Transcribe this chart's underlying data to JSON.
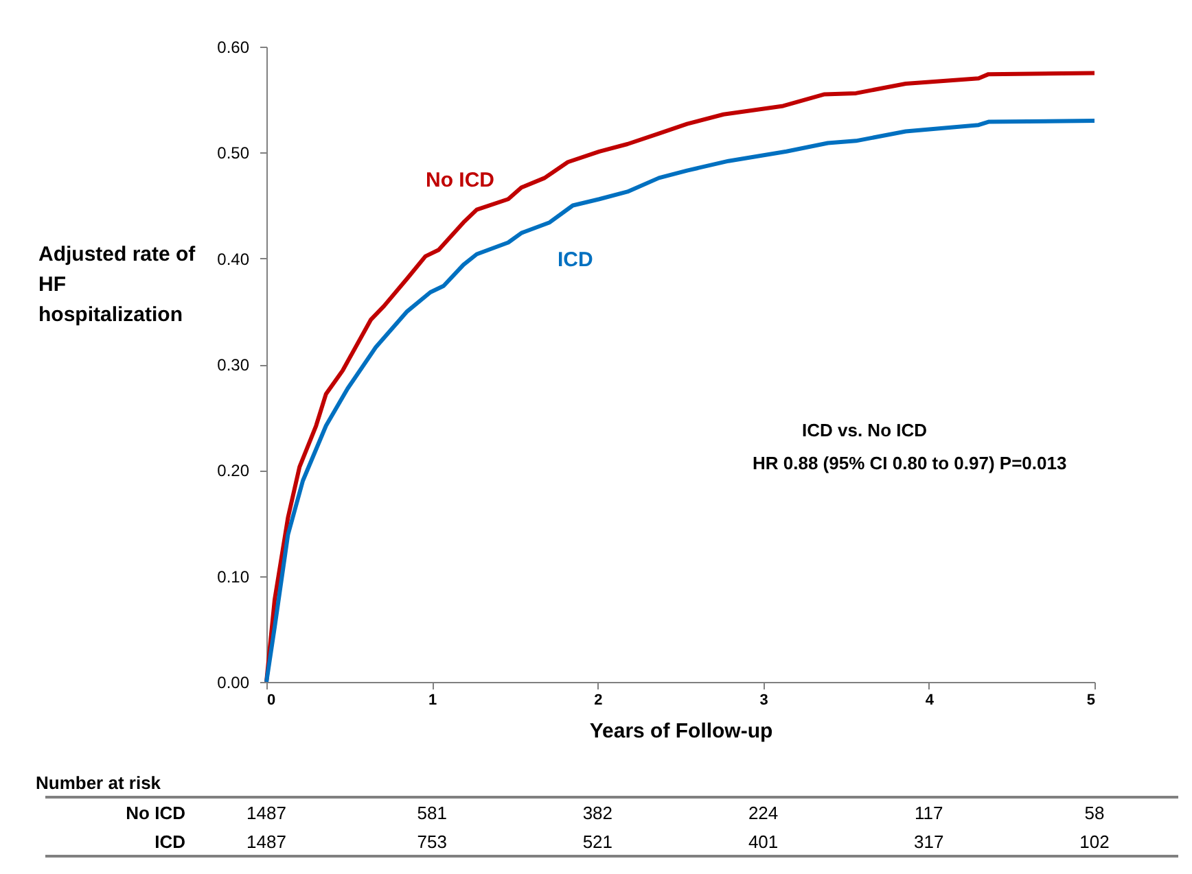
{
  "chart_data": {
    "type": "line",
    "xlabel": "Years of Follow-up",
    "ylabel": "Adjusted rate of HF hospitalization",
    "xlim": [
      0,
      5
    ],
    "xticks": [
      0,
      1,
      2,
      3,
      4,
      5
    ],
    "ylim": [
      0,
      0.6
    ],
    "yticks": [
      {
        "value": 0,
        "label": "0.00"
      },
      {
        "value": 0.1,
        "label": "0.10"
      },
      {
        "value": 0.2,
        "label": "0.20"
      },
      {
        "value": 0.3,
        "label": "0.30"
      },
      {
        "value": 0.4,
        "label": "0.40"
      },
      {
        "value": 0.5,
        "label": "0.50"
      },
      {
        "value": 0.6,
        "label": "0.60"
      }
    ],
    "grid": false,
    "legend": false,
    "marker": "none",
    "line_style": "solid",
    "series": [
      {
        "name": "No ICD",
        "color": "#c00000",
        "x": [
          0,
          0.05,
          0.13,
          0.2,
          0.3,
          0.36,
          0.46,
          0.63,
          0.71,
          0.85,
          0.96,
          1.04,
          1.19,
          1.27,
          1.46,
          1.54,
          1.68,
          1.82,
          2.01,
          2.18,
          2.37,
          2.54,
          2.76,
          3.12,
          3.37,
          3.56,
          3.86,
          4.3,
          4.36,
          5
        ],
        "values": [
          0,
          0.078,
          0.155,
          0.203,
          0.242,
          0.272,
          0.294,
          0.342,
          0.355,
          0.381,
          0.402,
          0.408,
          0.434,
          0.446,
          0.456,
          0.467,
          0.476,
          0.491,
          0.501,
          0.508,
          0.518,
          0.527,
          0.536,
          0.544,
          0.555,
          0.556,
          0.565,
          0.57,
          0.574,
          0.575
        ]
      },
      {
        "name": "ICD",
        "color": "#0070c0",
        "x": [
          0,
          0.05,
          0.13,
          0.22,
          0.36,
          0.49,
          0.66,
          0.85,
          0.99,
          1.07,
          1.19,
          1.27,
          1.46,
          1.54,
          1.71,
          1.85,
          2.01,
          2.18,
          2.37,
          2.54,
          2.79,
          3.14,
          3.39,
          3.56,
          3.86,
          4.3,
          4.36,
          5
        ],
        "values": [
          0,
          0.052,
          0.139,
          0.19,
          0.242,
          0.277,
          0.316,
          0.35,
          0.368,
          0.374,
          0.394,
          0.404,
          0.415,
          0.424,
          0.434,
          0.45,
          0.456,
          0.463,
          0.476,
          0.483,
          0.492,
          0.501,
          0.509,
          0.511,
          0.52,
          0.526,
          0.529,
          0.53
        ]
      }
    ],
    "annotations": [
      "ICD vs. No ICD",
      "HR 0.88 (95% CI 0.80 to 0.97) P=0.013",
      "Number at risk",
      "No ICD",
      "1487",
      "581",
      "382",
      "224",
      "117",
      "58",
      "ICD",
      "1487",
      "753",
      "521",
      "401",
      "317",
      "102"
    ]
  }
}
